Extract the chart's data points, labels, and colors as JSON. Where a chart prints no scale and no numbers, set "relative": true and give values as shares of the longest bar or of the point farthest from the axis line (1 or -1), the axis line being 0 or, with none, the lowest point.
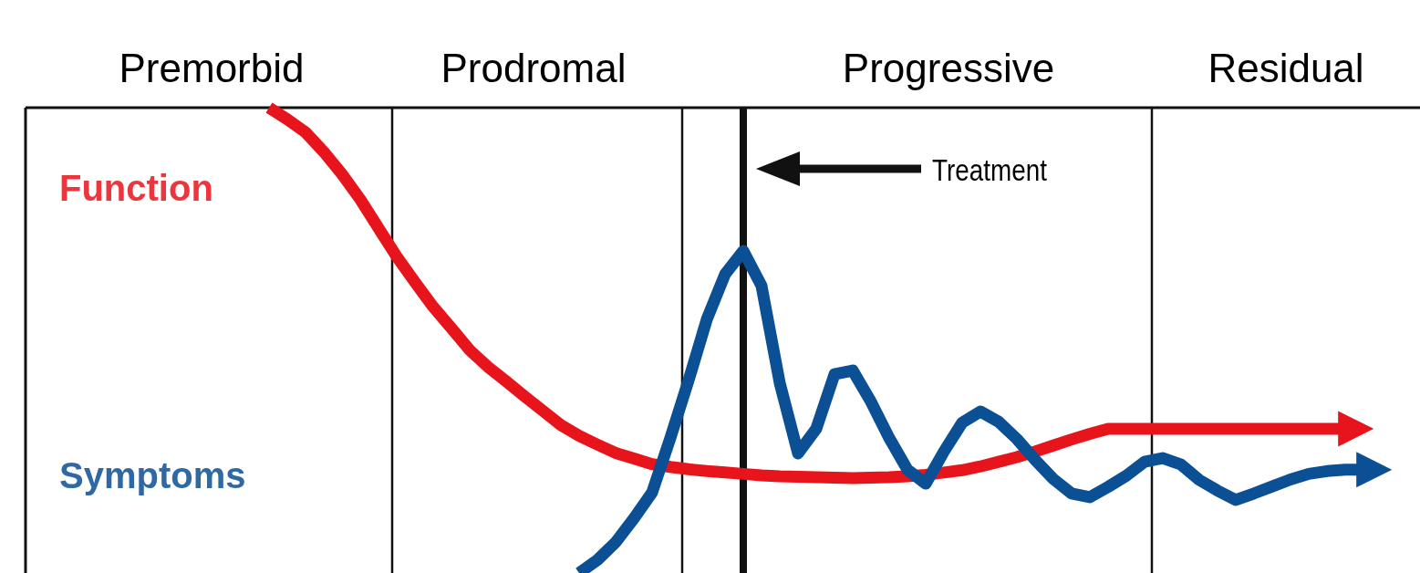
{
  "chart_data": {
    "type": "line",
    "relative": true,
    "legend": false,
    "marker": "none",
    "line_style": "solid",
    "categories": [
      null,
      null,
      null,
      null,
      null,
      null,
      null,
      null,
      null,
      null,
      null,
      null,
      null,
      null,
      null,
      null,
      null,
      null,
      null,
      null,
      null,
      null,
      null,
      null,
      null,
      null,
      null,
      null,
      null,
      null,
      null,
      null,
      null,
      null,
      null,
      null,
      null,
      null,
      null,
      null,
      null,
      null,
      null,
      null,
      null,
      null,
      null,
      null,
      null,
      null,
      null,
      null,
      null,
      null,
      null,
      null,
      null,
      null,
      null,
      null,
      null
    ],
    "series": [
      {
        "name": "Function",
        "color": "#e8141c",
        "values": [
          1.0,
          0.975,
          0.947,
          0.905,
          0.857,
          0.803,
          0.741,
          0.68,
          0.625,
          0.572,
          0.526,
          0.479,
          0.443,
          0.412,
          0.38,
          0.349,
          0.318,
          0.295,
          0.276,
          0.258,
          0.246,
          0.234,
          0.228,
          0.223,
          0.219,
          0.216,
          0.213,
          0.21,
          0.208,
          0.207,
          0.206,
          0.205,
          0.204,
          0.205,
          0.206,
          0.208,
          0.211,
          0.216,
          0.221,
          0.229,
          0.239,
          0.249,
          0.261,
          0.274,
          0.287,
          0.299,
          0.31,
          0.31,
          0.31,
          0.31,
          0.31,
          0.31,
          0.31,
          0.31,
          0.31,
          0.31,
          0.31,
          0.31,
          0.31,
          0.31,
          null
        ]
      },
      {
        "name": "Symptoms",
        "color": "#0b4f95",
        "values": [
          null,
          null,
          null,
          null,
          null,
          null,
          null,
          null,
          null,
          null,
          null,
          null,
          null,
          null,
          null,
          null,
          null,
          0,
          0.028,
          0.066,
          0.117,
          0.173,
          0.29,
          0.414,
          0.545,
          0.642,
          0.692,
          0.617,
          0.408,
          0.257,
          0.31,
          0.427,
          0.435,
          0.368,
          0.29,
          0.222,
          0.192,
          0.261,
          0.323,
          0.347,
          0.325,
          0.288,
          0.243,
          0.202,
          0.171,
          0.163,
          0.185,
          0.209,
          0.239,
          0.247,
          0.233,
          0.2,
          0.177,
          0.157,
          0.171,
          0.186,
          0.201,
          0.213,
          0.219,
          0.222,
          0.222
        ]
      }
    ],
    "annotations": [
      "Premorbid",
      "Prodromal",
      "Progressive",
      "Residual",
      "Treatment"
    ]
  }
}
